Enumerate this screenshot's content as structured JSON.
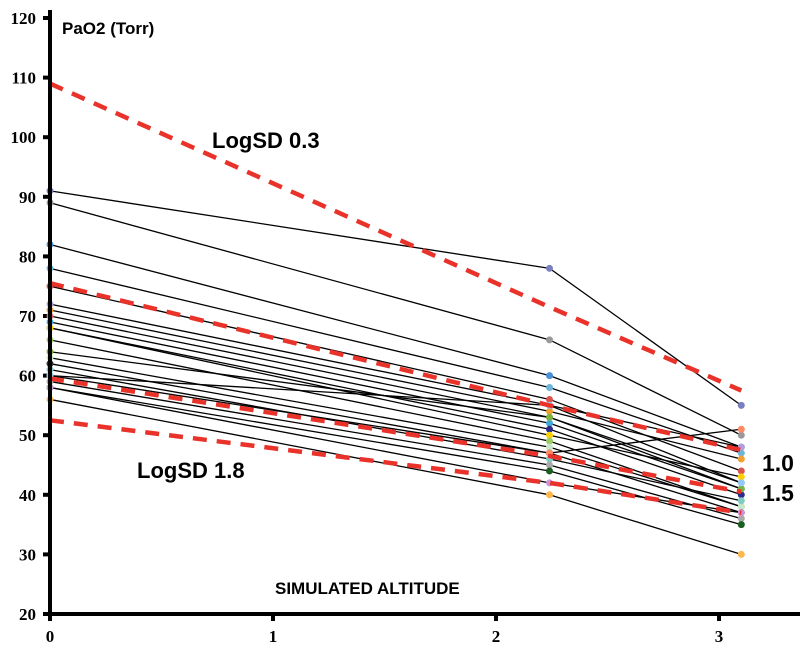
{
  "chart_data": {
    "type": "line",
    "title": "",
    "ylabel": "PaO2 (Torr)",
    "xlabel": "SIMULATED ALTITUDE",
    "xlim": [
      0,
      3.5
    ],
    "ylim": [
      20,
      120
    ],
    "x_ticks": [
      "0",
      "1",
      "2",
      "3"
    ],
    "y_ticks": [
      "20",
      "30",
      "40",
      "50",
      "60",
      "70",
      "80",
      "90",
      "100",
      "110",
      "120"
    ],
    "grid": false,
    "x": [
      0,
      2.24,
      3.1
    ],
    "subjects": [
      [
        91,
        78,
        55
      ],
      [
        89,
        66,
        50
      ],
      [
        82,
        60,
        48
      ],
      [
        78,
        58,
        47
      ],
      [
        75,
        56,
        44
      ],
      [
        72,
        55,
        48
      ],
      [
        71,
        54,
        46
      ],
      [
        70,
        53,
        42
      ],
      [
        69,
        52,
        41
      ],
      [
        68,
        51,
        40
      ],
      [
        68,
        50,
        43
      ],
      [
        66,
        49,
        38
      ],
      [
        64,
        53,
        41
      ],
      [
        63,
        48,
        38
      ],
      [
        62,
        47,
        37
      ],
      [
        61,
        46,
        39
      ],
      [
        60,
        47,
        51
      ],
      [
        59,
        45,
        36
      ],
      [
        58,
        44,
        35
      ],
      [
        58,
        42,
        37
      ],
      [
        56,
        40,
        30
      ],
      [
        60,
        55,
        42
      ]
    ],
    "reference_lines": [
      {
        "name": "LogSD 0.3",
        "values": [
          109,
          71.5,
          57.5
        ]
      },
      {
        "name": "1.0",
        "values": [
          75.5,
          55,
          47.5
        ]
      },
      {
        "name": "1.5",
        "values": [
          59.5,
          46.5,
          40.5
        ]
      },
      {
        "name": "LogSD 1.8",
        "values": [
          52.5,
          42,
          37
        ]
      }
    ],
    "annotations": {
      "logsd_03": "LogSD 0.3",
      "logsd_18": "LogSD 1.8",
      "sd_10": "1.0",
      "sd_15": "1.5"
    },
    "colors": {
      "reference": "#e8322a",
      "subject": "#000000"
    }
  }
}
